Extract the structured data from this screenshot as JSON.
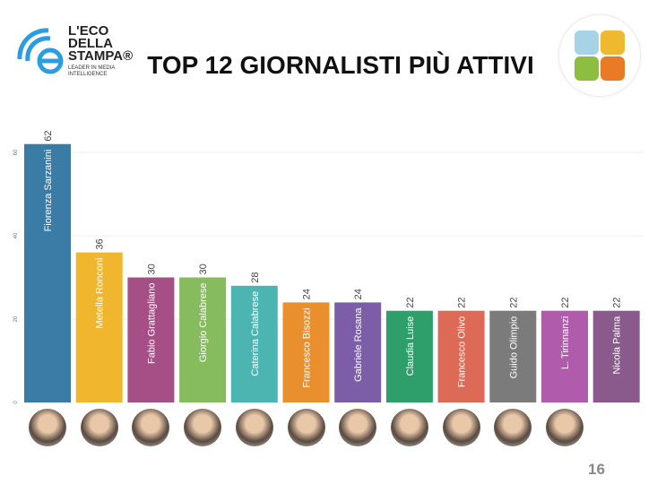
{
  "logo": {
    "line1": "L'ECO",
    "line2": "DELLA",
    "line3": "STAMPA®",
    "tagline1": "LEADER IN MEDIA",
    "tagline2": "INTELLIGENCE"
  },
  "title": "TOP 12 GIORNALISTI PIÙ ATTIVI",
  "page_number": "16",
  "chart_data": {
    "type": "bar",
    "title": "TOP 12 GIORNALISTI PIÙ ATTIVI",
    "categories": [
      "Fiorenza Sarzanini",
      "Metella Ronconi",
      "Fabio Grattagliano",
      "Giorgio Calabrese",
      "Caterina Calabrese",
      "Francesco Bisozzi",
      "Gabriele Rosana",
      "Claudia Luise",
      "Francesco Olivo",
      "Guido Olimpio",
      "L. Tirinnanzi",
      "Nicola Palma"
    ],
    "values": [
      62,
      36,
      30,
      30,
      28,
      24,
      24,
      22,
      22,
      22,
      22,
      22
    ],
    "colors": [
      "#3b7ca6",
      "#f0b62e",
      "#a64f86",
      "#86bb5e",
      "#4cb5b2",
      "#e98f2d",
      "#7b5ea7",
      "#2e9e6a",
      "#dd6a57",
      "#7b7b7b",
      "#b05bac",
      "#8a5a8c"
    ],
    "yticks": [
      0,
      20,
      40,
      60
    ],
    "ylim": [
      0,
      62
    ],
    "grid": true,
    "legend": "none"
  }
}
